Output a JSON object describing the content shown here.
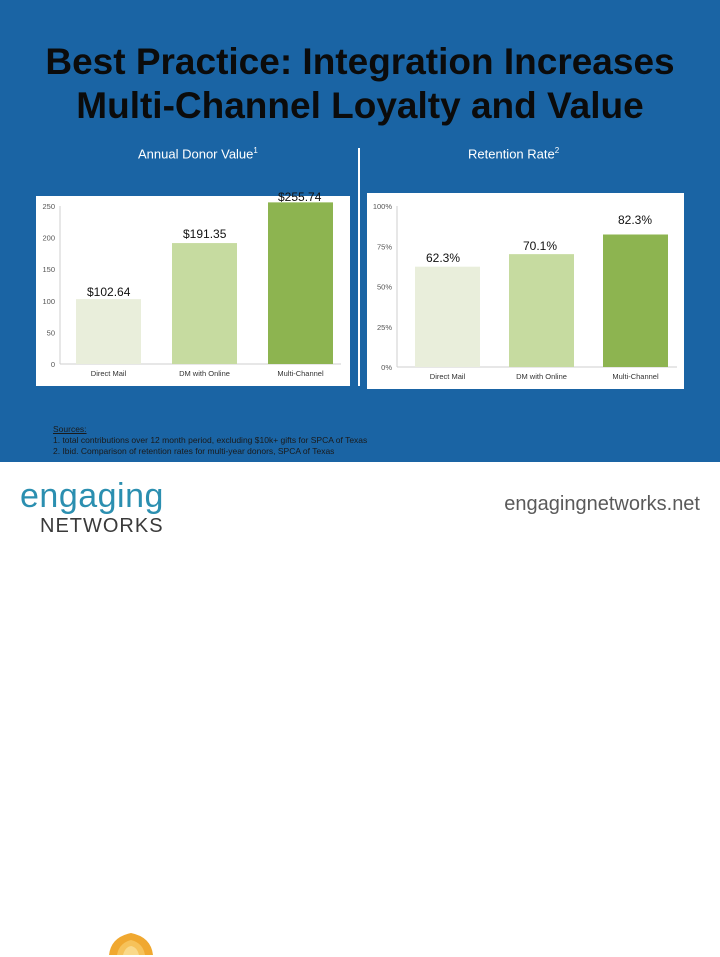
{
  "title": {
    "line1": "Best Practice: Integration Increases",
    "line2": "Multi-Channel Loyalty and Value"
  },
  "charts": {
    "left_label": "Annual Donor Value",
    "left_note": "1",
    "right_label": "Retention Rate",
    "right_note": "2"
  },
  "chart_data": [
    {
      "type": "bar",
      "title": "Annual Donor Value",
      "categories": [
        "Direct Mail",
        "DM with Online",
        "Multi-Channel"
      ],
      "values": [
        102.64,
        191.35,
        255.74
      ],
      "data_labels": [
        "$102.64",
        "$191.35",
        "$255.74"
      ],
      "ylim": [
        0,
        250
      ],
      "yticks": [
        "0",
        "50",
        "100",
        "150",
        "200",
        "250"
      ],
      "colors": [
        "#e9eedb",
        "#c6dba0",
        "#8db450"
      ],
      "grid": false
    },
    {
      "type": "bar",
      "title": "Retention Rate",
      "categories": [
        "Direct Mail",
        "DM with Online",
        "Multi-Channel"
      ],
      "values": [
        62.3,
        70.1,
        82.3
      ],
      "data_labels": [
        "62.3%",
        "70.1%",
        "82.3%"
      ],
      "ylim": [
        0,
        100
      ],
      "yticks": [
        "0%",
        "25%",
        "50%",
        "75%",
        "100%"
      ],
      "colors": [
        "#e9eedb",
        "#c6dba0",
        "#8db450"
      ],
      "grid": false
    }
  ],
  "sources": {
    "heading": "Sources:",
    "items": [
      "1.  total contributions over 12 month period, excluding $10k+ gifts for SPCA of Texas",
      "2.  Ibid. Comparison of retention rates for multi-year donors, SPCA of Texas"
    ]
  },
  "footer": {
    "logo_main": "engaging",
    "logo_sub": "NETWORKS",
    "website": "engagingnetworks.net"
  }
}
